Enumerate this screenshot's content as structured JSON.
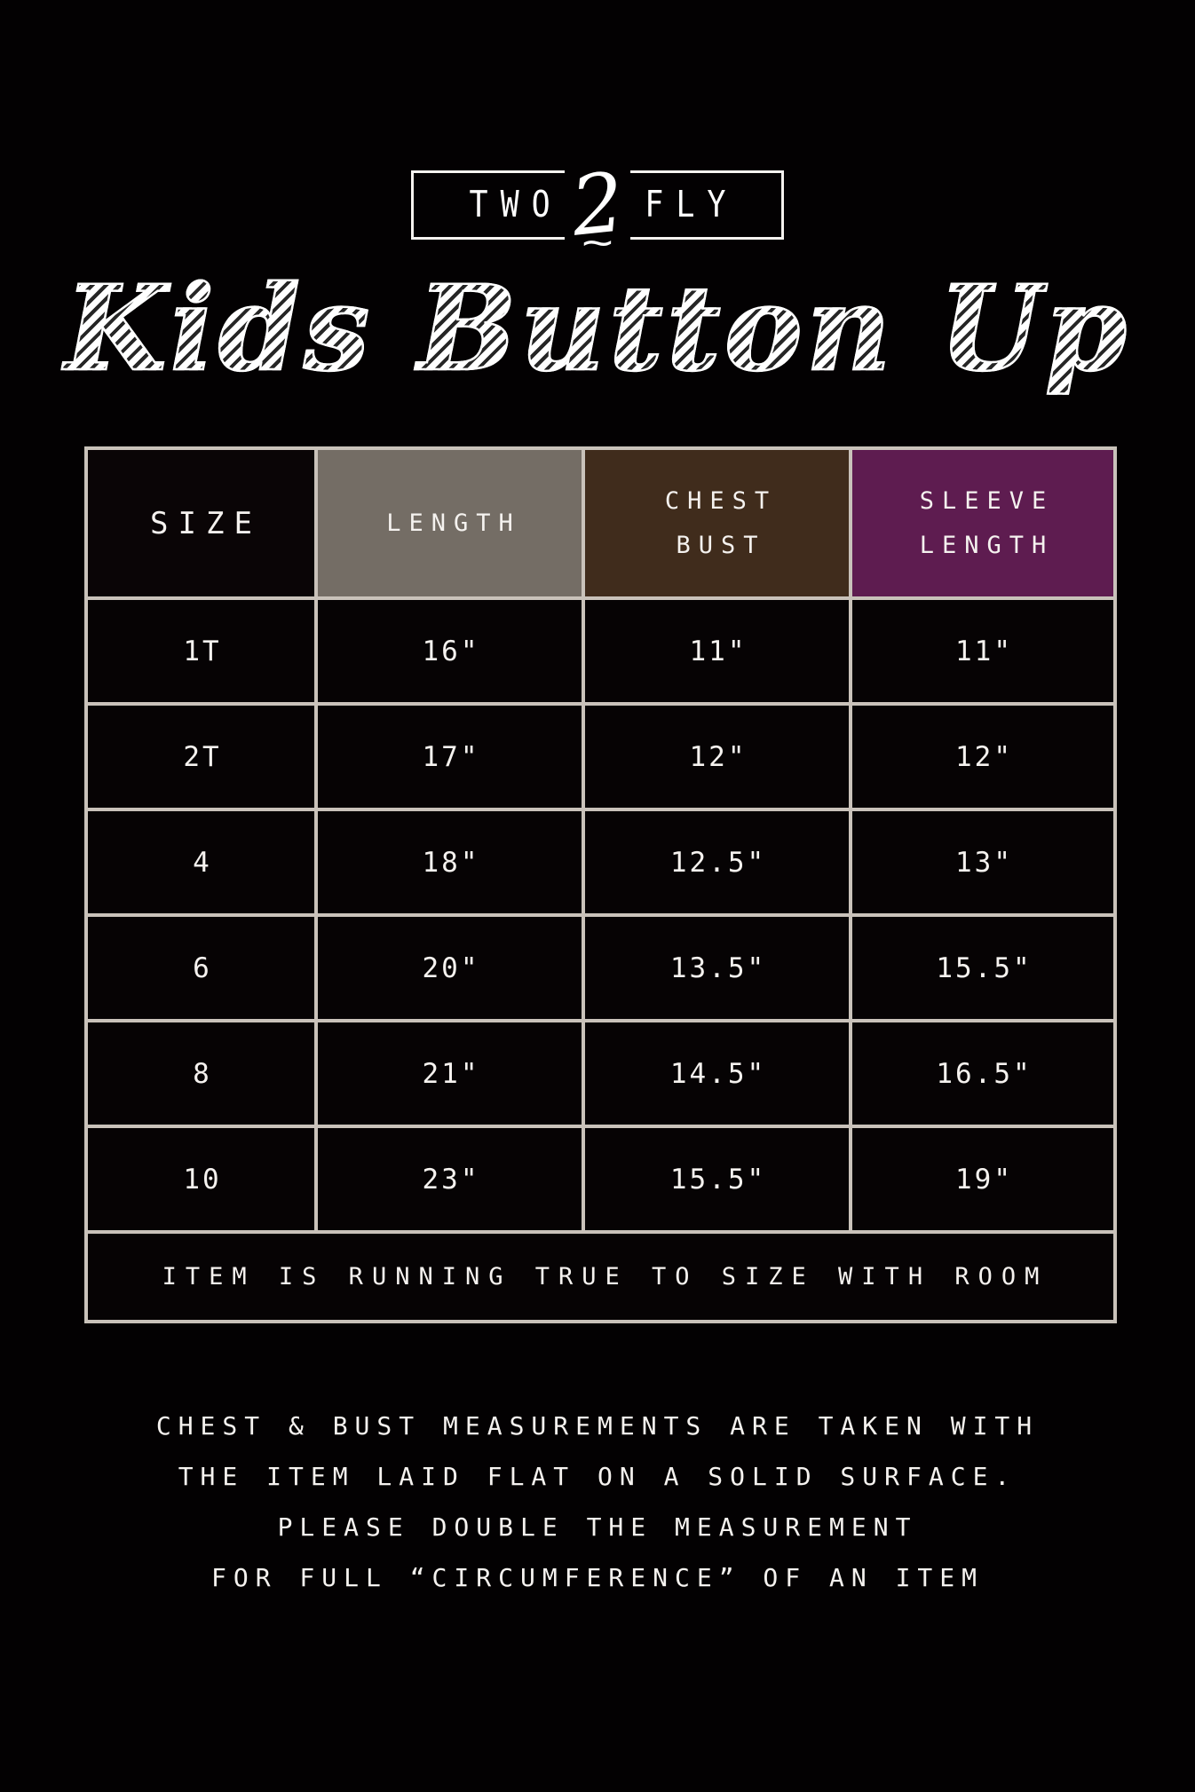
{
  "brand": {
    "left": "TWO",
    "numeral": "2",
    "right": "FLY"
  },
  "title": "Kids Button Up",
  "size_chart": {
    "columns": [
      {
        "line1": "SIZE",
        "line2": ""
      },
      {
        "line1": "LENGTH",
        "line2": ""
      },
      {
        "line1": "CHEST",
        "line2": "BUST"
      },
      {
        "line1": "SLEEVE",
        "line2": "LENGTH"
      }
    ],
    "rows": [
      {
        "size": "1T",
        "length": "16\"",
        "chest_bust": "11\"",
        "sleeve_length": "11\""
      },
      {
        "size": "2T",
        "length": "17\"",
        "chest_bust": "12\"",
        "sleeve_length": "12\""
      },
      {
        "size": "4",
        "length": "18\"",
        "chest_bust": "12.5\"",
        "sleeve_length": "13\""
      },
      {
        "size": "6",
        "length": "20\"",
        "chest_bust": "13.5\"",
        "sleeve_length": "15.5\""
      },
      {
        "size": "8",
        "length": "21\"",
        "chest_bust": "14.5\"",
        "sleeve_length": "16.5\""
      },
      {
        "size": "10",
        "length": "23\"",
        "chest_bust": "15.5\"",
        "sleeve_length": "19\""
      }
    ],
    "footer_note": "ITEM IS RUNNING TRUE TO SIZE WITH ROOM"
  },
  "notes": {
    "line1": "CHEST & BUST MEASUREMENTS ARE TAKEN WITH",
    "line2": "THE ITEM LAID FLAT ON A SOLID SURFACE.",
    "line3": "PLEASE DOUBLE THE MEASUREMENT",
    "line4": "FOR FULL “CIRCUMFERENCE” OF AN ITEM"
  },
  "colors": {
    "background": "#030102",
    "table_border": "#c9c2ba",
    "header_size_bg": "#0a0506",
    "header_length_bg": "#746d65",
    "header_chest_bg": "#402c1c",
    "header_sleeve_bg": "#5e1c50",
    "text": "#f5f2ef"
  },
  "chart_data": {
    "type": "table",
    "title": "Two 2 Fly — Kids Button Up size chart",
    "columns": [
      "SIZE",
      "LENGTH",
      "CHEST BUST",
      "SLEEVE LENGTH"
    ],
    "rows": [
      [
        "1T",
        "16\"",
        "11\"",
        "11\""
      ],
      [
        "2T",
        "17\"",
        "12\"",
        "12\""
      ],
      [
        "4",
        "18\"",
        "12.5\"",
        "13\""
      ],
      [
        "6",
        "20\"",
        "13.5\"",
        "15.5\""
      ],
      [
        "8",
        "21\"",
        "14.5\"",
        "16.5\""
      ],
      [
        "10",
        "23\"",
        "15.5\"",
        "19\""
      ]
    ],
    "footnote": "ITEM IS RUNNING TRUE TO SIZE WITH ROOM"
  }
}
